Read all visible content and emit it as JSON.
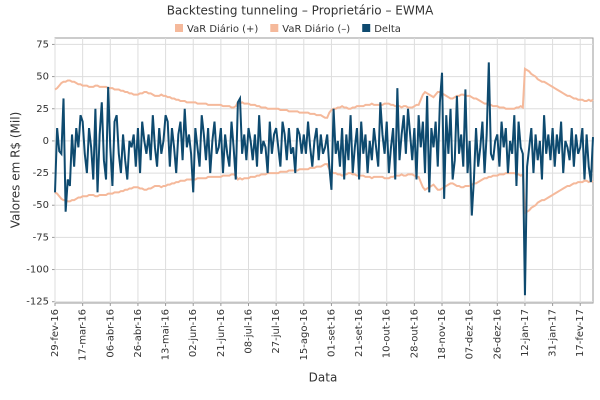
{
  "chart_data": {
    "type": "line",
    "title": "Backtesting tunneling – Proprietário – EWMA",
    "x_label": "Data",
    "y_label": "Valores em R$ (Mil)",
    "categories": [
      "29-fev-16",
      null,
      null,
      null,
      null,
      null,
      null,
      null,
      null,
      null,
      null,
      null,
      null,
      "17-mar-16",
      null,
      null,
      null,
      null,
      null,
      null,
      null,
      null,
      null,
      null,
      null,
      null,
      "06-abr-16",
      null,
      null,
      null,
      null,
      null,
      null,
      null,
      null,
      null,
      null,
      null,
      null,
      "26-abr-16",
      null,
      null,
      null,
      null,
      null,
      null,
      null,
      null,
      null,
      null,
      null,
      null,
      "13-mai-16",
      null,
      null,
      null,
      null,
      null,
      null,
      null,
      null,
      null,
      null,
      null,
      null,
      "02-jun-16",
      null,
      null,
      null,
      null,
      null,
      null,
      null,
      null,
      null,
      null,
      null,
      null,
      "21-jun-16",
      null,
      null,
      null,
      null,
      null,
      null,
      null,
      null,
      null,
      null,
      null,
      null,
      "08-jul-16",
      null,
      null,
      null,
      null,
      null,
      null,
      null,
      null,
      null,
      null,
      null,
      null,
      "27-jul-16",
      null,
      null,
      null,
      null,
      null,
      null,
      null,
      null,
      null,
      null,
      null,
      null,
      "15-ago-16",
      null,
      null,
      null,
      null,
      null,
      null,
      null,
      null,
      null,
      null,
      null,
      null,
      "01-set-16",
      null,
      null,
      null,
      null,
      null,
      null,
      null,
      null,
      null,
      null,
      null,
      null,
      "21-set-16",
      null,
      null,
      null,
      null,
      null,
      null,
      null,
      null,
      null,
      null,
      null,
      null,
      "10-out-16",
      null,
      null,
      null,
      null,
      null,
      null,
      null,
      null,
      null,
      null,
      null,
      null,
      "28-out-16",
      null,
      null,
      null,
      null,
      null,
      null,
      null,
      null,
      null,
      null,
      null,
      null,
      "18-nov-16",
      null,
      null,
      null,
      null,
      null,
      null,
      null,
      null,
      null,
      null,
      null,
      null,
      "07-dez-16",
      null,
      null,
      null,
      null,
      null,
      null,
      null,
      null,
      null,
      null,
      null,
      null,
      "26-dez-16",
      null,
      null,
      null,
      null,
      null,
      null,
      null,
      null,
      null,
      null,
      null,
      null,
      "12-jan-17",
      null,
      null,
      null,
      null,
      null,
      null,
      null,
      null,
      null,
      null,
      null,
      null,
      "31-jan-17",
      null,
      null,
      null,
      null,
      null,
      null,
      null,
      null,
      null,
      null,
      null,
      null,
      "17-fev-17",
      null,
      null,
      null,
      null,
      null,
      null
    ],
    "series": [
      {
        "name": "VaR Diário (+)",
        "color": "#f5b99b",
        "values": [
          40,
          41,
          43,
          45,
          46,
          46,
          47,
          47,
          46,
          46,
          45,
          44,
          44,
          43,
          43,
          43,
          42,
          42,
          42,
          43,
          43,
          42,
          42,
          42,
          42,
          41,
          41,
          41,
          40,
          40,
          40,
          39,
          39,
          38,
          38,
          37,
          37,
          36,
          36,
          36,
          37,
          37,
          38,
          38,
          37,
          37,
          36,
          35,
          35,
          35,
          36,
          35,
          35,
          34,
          34,
          33,
          33,
          32,
          32,
          31,
          31,
          31,
          30,
          30,
          30,
          30,
          30,
          29,
          29,
          29,
          29,
          29,
          28,
          28,
          28,
          28,
          28,
          28,
          28,
          27,
          27,
          27,
          27,
          26,
          26,
          27,
          30,
          29,
          30,
          29,
          29,
          29,
          28,
          28,
          28,
          27,
          27,
          26,
          26,
          26,
          25,
          25,
          25,
          25,
          25,
          25,
          24,
          24,
          24,
          24,
          23,
          23,
          23,
          23,
          23,
          22,
          22,
          22,
          22,
          22,
          21,
          21,
          21,
          20,
          20,
          20,
          19,
          18,
          18,
          22,
          24,
          25,
          25,
          26,
          26,
          27,
          26,
          26,
          25,
          25,
          26,
          26,
          27,
          27,
          27,
          27,
          28,
          28,
          28,
          29,
          28,
          28,
          28,
          28,
          28,
          29,
          29,
          29,
          28,
          28,
          27,
          27,
          27,
          26,
          27,
          27,
          26,
          26,
          26,
          27,
          28,
          28,
          32,
          36,
          38,
          37,
          36,
          35,
          34,
          36,
          38,
          38,
          37,
          36,
          35,
          34,
          33,
          33,
          34,
          35,
          35,
          36,
          36,
          35,
          35,
          35,
          34,
          33,
          33,
          32,
          31,
          30,
          29,
          29,
          28,
          28,
          27,
          27,
          27,
          26,
          26,
          26,
          25,
          25,
          25,
          25,
          25,
          26,
          26,
          27,
          26,
          56,
          55,
          54,
          52,
          51,
          50,
          48,
          47,
          46,
          46,
          45,
          44,
          43,
          42,
          41,
          40,
          39,
          38,
          37,
          36,
          35,
          35,
          34,
          33,
          33,
          32,
          32,
          32,
          31,
          31,
          32,
          31,
          32
        ]
      },
      {
        "name": "VaR Diário (–)",
        "color": "#f5b99b",
        "values": [
          -40,
          -41,
          -43,
          -45,
          -46,
          -46,
          -47,
          -47,
          -46,
          -46,
          -45,
          -44,
          -44,
          -43,
          -43,
          -43,
          -42,
          -42,
          -42,
          -43,
          -43,
          -42,
          -42,
          -42,
          -42,
          -41,
          -41,
          -41,
          -40,
          -40,
          -40,
          -39,
          -39,
          -38,
          -38,
          -37,
          -37,
          -36,
          -36,
          -36,
          -37,
          -37,
          -38,
          -38,
          -37,
          -37,
          -36,
          -35,
          -35,
          -35,
          -36,
          -35,
          -35,
          -34,
          -34,
          -33,
          -33,
          -32,
          -32,
          -31,
          -31,
          -31,
          -30,
          -30,
          -30,
          -30,
          -30,
          -29,
          -29,
          -29,
          -29,
          -29,
          -28,
          -28,
          -28,
          -28,
          -28,
          -28,
          -28,
          -27,
          -27,
          -27,
          -27,
          -26,
          -26,
          -27,
          -30,
          -29,
          -30,
          -29,
          -29,
          -29,
          -28,
          -28,
          -28,
          -27,
          -27,
          -26,
          -26,
          -26,
          -25,
          -25,
          -25,
          -25,
          -25,
          -25,
          -24,
          -24,
          -24,
          -24,
          -23,
          -23,
          -23,
          -23,
          -23,
          -22,
          -22,
          -22,
          -22,
          -22,
          -21,
          -21,
          -21,
          -20,
          -20,
          -20,
          -19,
          -18,
          -18,
          -22,
          -24,
          -25,
          -25,
          -26,
          -26,
          -27,
          -26,
          -26,
          -25,
          -25,
          -26,
          -26,
          -27,
          -27,
          -27,
          -27,
          -28,
          -28,
          -28,
          -29,
          -28,
          -28,
          -28,
          -28,
          -28,
          -29,
          -29,
          -29,
          -28,
          -28,
          -27,
          -27,
          -27,
          -26,
          -27,
          -27,
          -26,
          -26,
          -26,
          -27,
          -28,
          -28,
          -32,
          -36,
          -38,
          -37,
          -36,
          -35,
          -34,
          -36,
          -38,
          -38,
          -37,
          -36,
          -35,
          -34,
          -33,
          -33,
          -34,
          -35,
          -35,
          -36,
          -36,
          -35,
          -35,
          -35,
          -34,
          -33,
          -33,
          -32,
          -31,
          -30,
          -29,
          -29,
          -28,
          -28,
          -27,
          -27,
          -27,
          -26,
          -26,
          -26,
          -25,
          -25,
          -25,
          -25,
          -25,
          -26,
          -26,
          -27,
          -26,
          -56,
          -55,
          -54,
          -52,
          -51,
          -50,
          -48,
          -47,
          -46,
          -46,
          -45,
          -44,
          -43,
          -42,
          -41,
          -40,
          -39,
          -38,
          -37,
          -36,
          -35,
          -35,
          -34,
          -33,
          -33,
          -32,
          -32,
          -32,
          -31,
          -31,
          -32,
          -31,
          -32
        ]
      },
      {
        "name": "Delta",
        "color": "#0e4a6f",
        "values": [
          -40,
          10,
          -8,
          -10,
          33,
          -55,
          -30,
          -35,
          5,
          -20,
          10,
          -5,
          20,
          15,
          -10,
          -25,
          10,
          -5,
          -30,
          25,
          -40,
          5,
          30,
          -15,
          -30,
          42,
          -5,
          -35,
          15,
          20,
          -10,
          -25,
          5,
          -15,
          -30,
          0,
          -5,
          5,
          -20,
          10,
          -25,
          15,
          0,
          -10,
          5,
          -15,
          20,
          -5,
          -20,
          10,
          -10,
          0,
          20,
          15,
          -20,
          10,
          -5,
          -25,
          5,
          15,
          -15,
          25,
          -5,
          5,
          -10,
          -40,
          10,
          -5,
          -20,
          20,
          5,
          -15,
          10,
          -25,
          0,
          15,
          -10,
          -5,
          10,
          -25,
          5,
          -10,
          -20,
          15,
          -5,
          -30,
          30,
          33,
          -10,
          5,
          -15,
          10,
          0,
          -15,
          5,
          -20,
          20,
          -10,
          0,
          -5,
          -25,
          15,
          -10,
          5,
          10,
          -5,
          -20,
          15,
          5,
          -15,
          10,
          -10,
          -5,
          -25,
          10,
          5,
          -10,
          5,
          -10,
          15,
          -5,
          -20,
          0,
          10,
          -15,
          5,
          -10,
          -5,
          5,
          -20,
          -38,
          25,
          -10,
          0,
          -20,
          10,
          -30,
          5,
          -15,
          20,
          -25,
          -5,
          10,
          -30,
          15,
          -10,
          5,
          -25,
          0,
          -15,
          10,
          -5,
          -20,
          30,
          5,
          -10,
          15,
          -25,
          -5,
          10,
          -30,
          41,
          -15,
          5,
          20,
          -10,
          25,
          5,
          -15,
          10,
          -30,
          20,
          -5,
          15,
          -25,
          35,
          -40,
          10,
          -5,
          15,
          -20,
          30,
          53,
          -45,
          20,
          -10,
          25,
          -30,
          -15,
          35,
          -10,
          5,
          -20,
          40,
          -25,
          0,
          -58,
          -30,
          10,
          -20,
          -5,
          15,
          -25,
          5,
          61,
          -10,
          -15,
          0,
          5,
          -20,
          15,
          -5,
          10,
          -25,
          0,
          -10,
          20,
          -35,
          15,
          -5,
          -10,
          -120,
          -20,
          -5,
          10,
          -25,
          5,
          -15,
          0,
          -30,
          20,
          -10,
          5,
          -15,
          10,
          -20,
          5,
          -10,
          15,
          -25,
          0,
          -5,
          -15,
          10,
          -20,
          5,
          -10,
          -5,
          10,
          -30,
          5,
          -20,
          -32,
          3
        ]
      }
    ],
    "ylim": [
      -126,
      80
    ],
    "yticks": [
      -125,
      -100,
      -75,
      -50,
      -25,
      0,
      25,
      50,
      75
    ],
    "grid": true
  }
}
